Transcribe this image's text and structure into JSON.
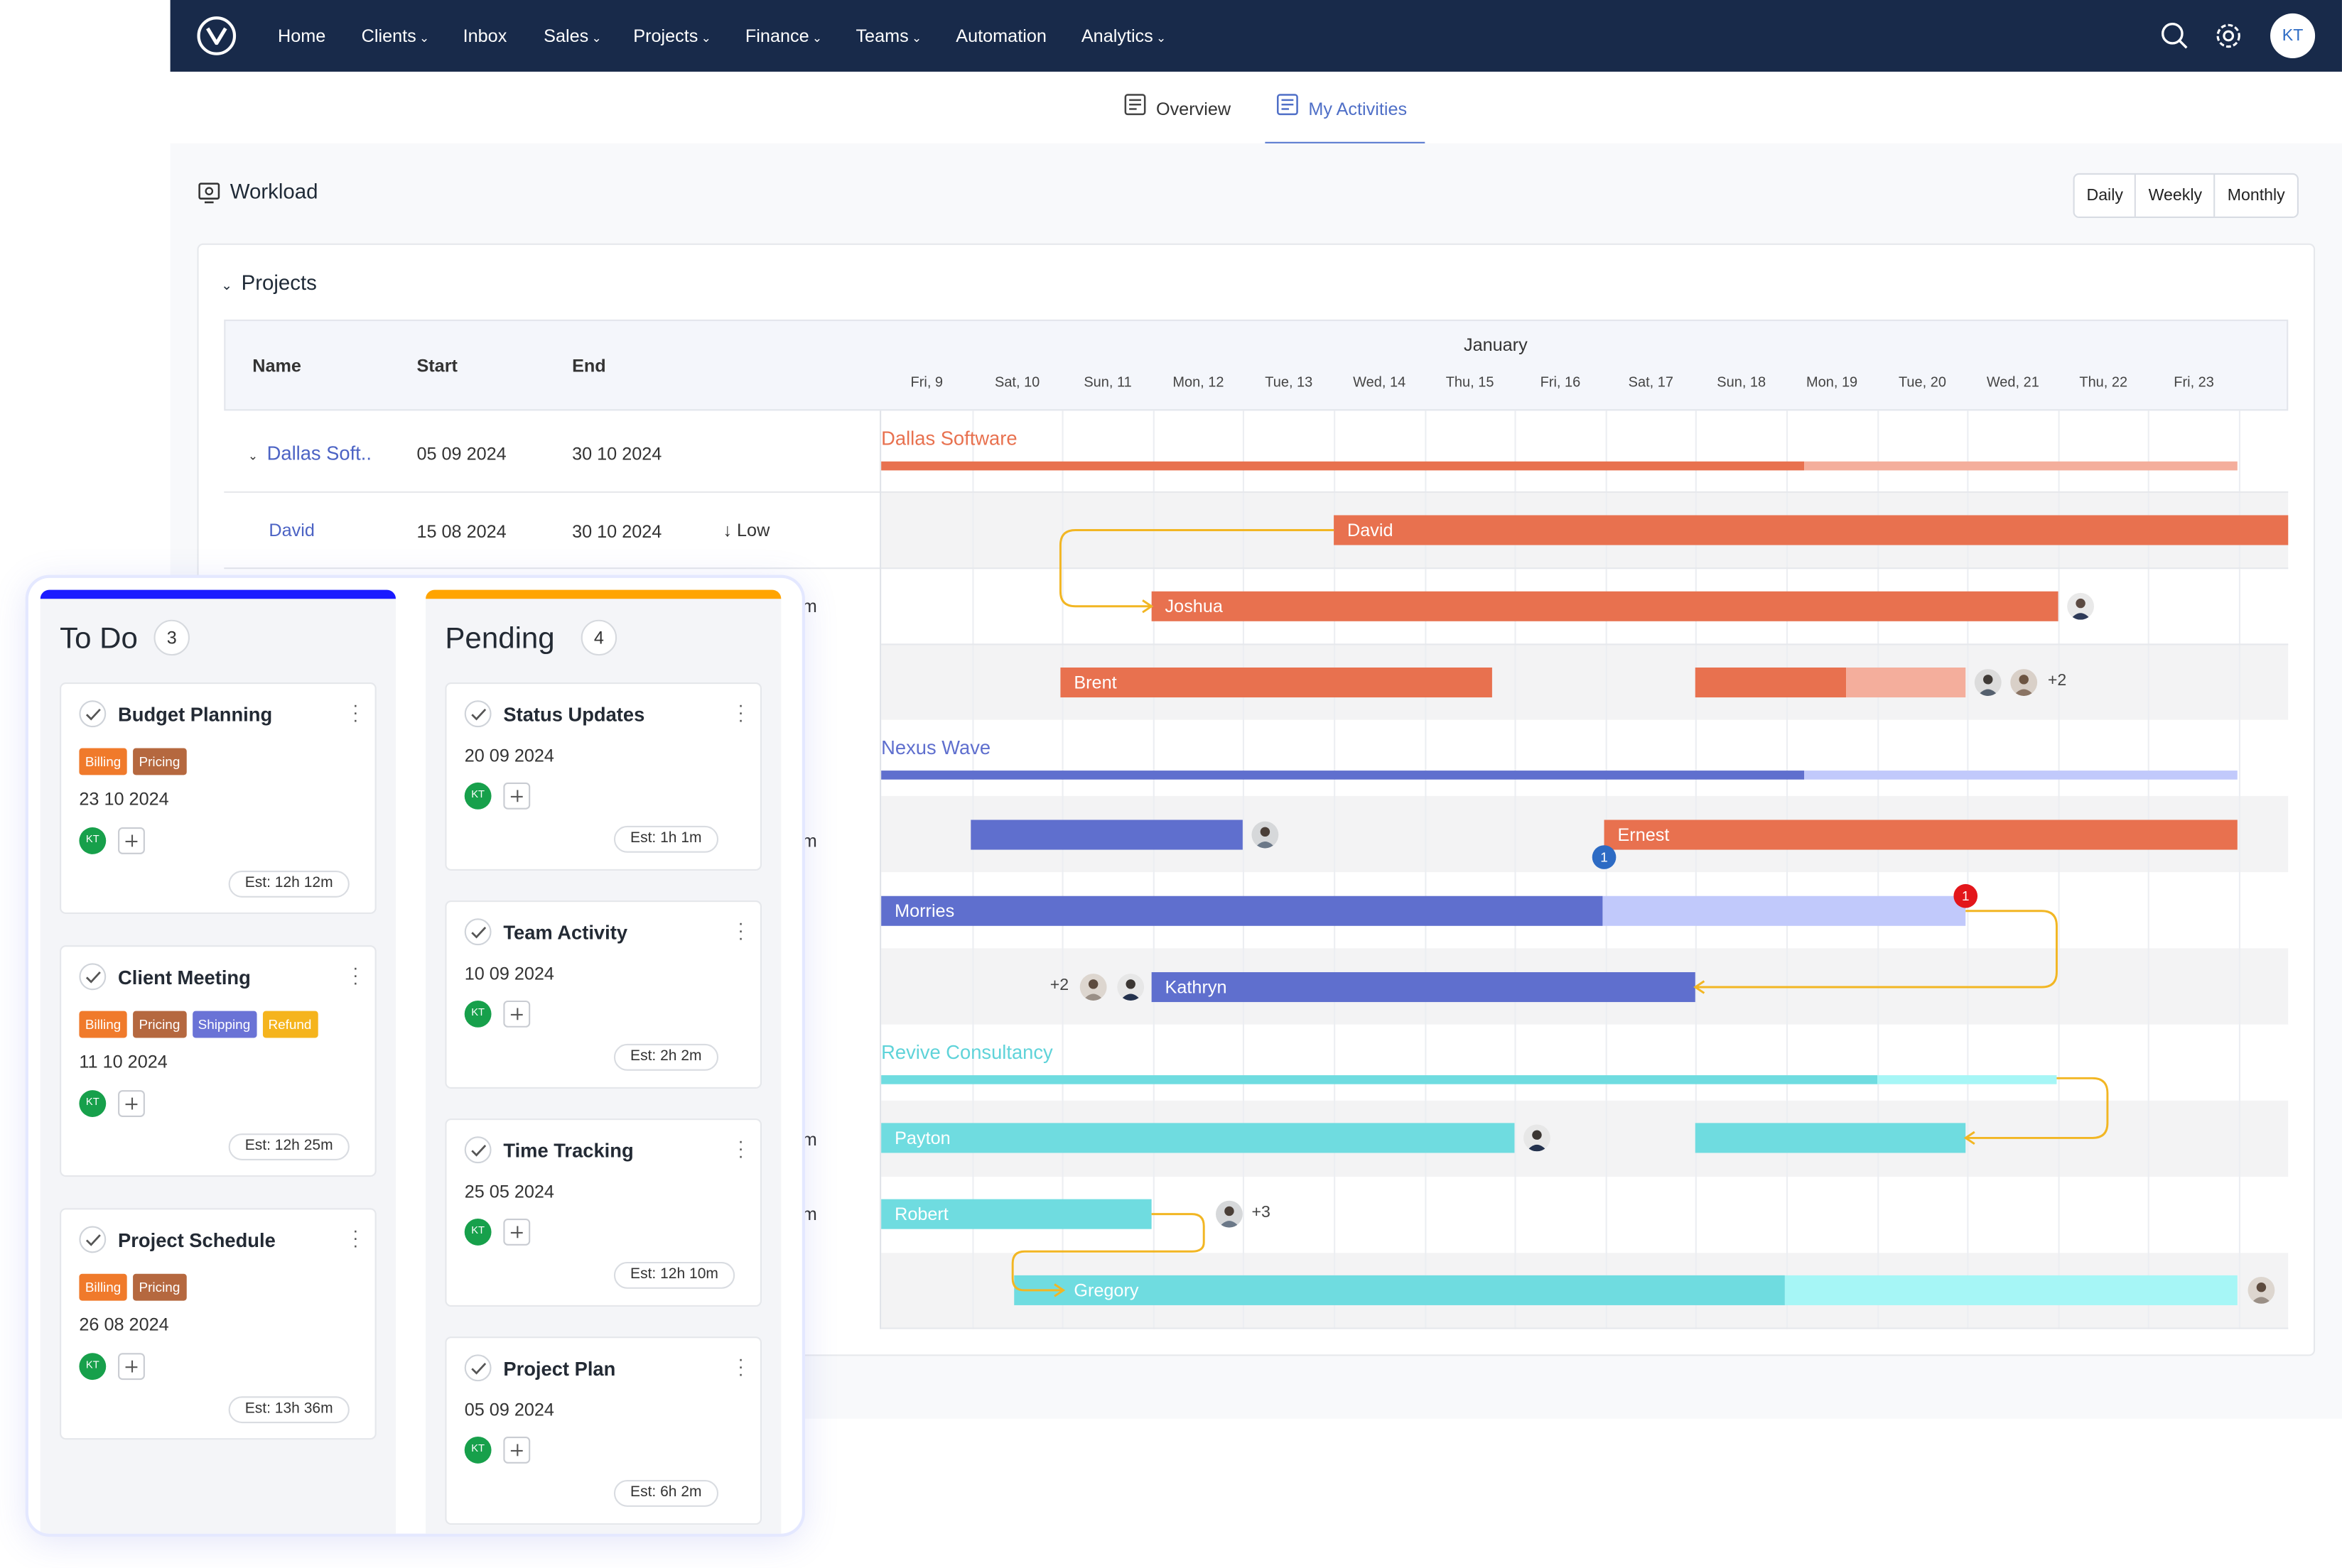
{
  "nav": {
    "items": [
      {
        "label": "Home",
        "dropdown": false
      },
      {
        "label": "Clients",
        "dropdown": true
      },
      {
        "label": "Inbox",
        "dropdown": false
      },
      {
        "label": "Sales",
        "dropdown": true
      },
      {
        "label": "Projects",
        "dropdown": true
      },
      {
        "label": "Finance",
        "dropdown": true
      },
      {
        "label": "Teams",
        "dropdown": true
      },
      {
        "label": "Automation",
        "dropdown": false
      },
      {
        "label": "Analytics",
        "dropdown": true
      }
    ],
    "avatar_initials": "KT",
    "icons": [
      "search-icon",
      "gear-icon"
    ]
  },
  "tabs": {
    "overview": "Overview",
    "my_activities": "My Activities",
    "active": "My Activities"
  },
  "workload": {
    "title": "Workload",
    "views": [
      "Daily",
      "Weekly",
      "Monthly"
    ],
    "section": "Projects"
  },
  "gantt": {
    "columns": {
      "name": "Name",
      "start": "Start",
      "end": "End"
    },
    "month": "January",
    "days": [
      "Fri, 9",
      "Sat, 10",
      "Sun, 11",
      "Mon, 12",
      "Tue, 13",
      "Wed, 14",
      "Thu, 15",
      "Fri, 16",
      "Sat, 17",
      "Sun, 18",
      "Mon, 19",
      "Tue, 20",
      "Wed, 21",
      "Thu, 22",
      "Fri, 23"
    ],
    "rows": {
      "dallas": {
        "name": "Dallas Soft..",
        "start": "05 09 2024",
        "end": "30 10 2024"
      },
      "david": {
        "name": "David",
        "start": "15 08 2024",
        "end": "30 10 2024",
        "priority": "Low"
      },
      "hidden_suffix": "m"
    },
    "projects": {
      "dallas": "Dallas Software",
      "nexus": "Nexus Wave",
      "revive": "Revive Consultancy"
    },
    "bars": {
      "david": "David",
      "joshua": "Joshua",
      "brent": "Brent",
      "ernest": "Ernest",
      "morries": "Morries",
      "kathryn": "Kathryn",
      "payton": "Payton",
      "robert": "Robert",
      "gregory": "Gregory"
    },
    "extras": {
      "brent_more": "+2",
      "kathryn_more": "+2",
      "robert_more": "+3",
      "badge_blue": "1",
      "badge_red": "1"
    }
  },
  "kanban": {
    "todo": {
      "title": "To Do",
      "count": "3",
      "cards": [
        {
          "title": "Budget Planning",
          "tags": [
            "Billing",
            "Pricing"
          ],
          "date": "23 10 2024",
          "avatar": "KT",
          "est": "Est: 12h 12m"
        },
        {
          "title": "Client Meeting",
          "tags": [
            "Billing",
            "Pricing",
            "Shipping",
            "Refund"
          ],
          "date": "11 10 2024",
          "avatar": "KT",
          "est": "Est: 12h 25m"
        },
        {
          "title": "Project Schedule",
          "tags": [
            "Billing",
            "Pricing"
          ],
          "date": "26 08 2024",
          "avatar": "KT",
          "est": "Est: 13h 36m"
        }
      ]
    },
    "pending": {
      "title": "Pending",
      "count": "4",
      "cards": [
        {
          "title": "Status Updates",
          "date": "20 09 2024",
          "avatar": "KT",
          "est": "Est: 1h 1m"
        },
        {
          "title": "Team Activity",
          "date": "10 09 2024",
          "avatar": "KT",
          "est": "Est: 2h 2m"
        },
        {
          "title": "Time Tracking",
          "date": "25 05 2024",
          "avatar": "KT",
          "est": "Est: 12h 10m"
        },
        {
          "title": "Project Plan",
          "date": "05 09 2024",
          "avatar": "KT",
          "est": "Est: 6h 2m"
        }
      ]
    }
  },
  "colors": {
    "nav_bg": "#182a4a",
    "orange": "#e8714f",
    "orange_light": "#f4ae9c",
    "indigo": "#5f6fce",
    "indigo_light": "#c1c9fb",
    "teal": "#6fdce0",
    "teal_light": "#a6f6f6",
    "todo_accent": "#1a1aff",
    "pending_accent": "#ffa400",
    "tag_billing": "#f07a2b",
    "tag_pricing": "#b5683f",
    "tag_shipping": "#6a73d6",
    "tag_refund": "#f5b41d"
  }
}
